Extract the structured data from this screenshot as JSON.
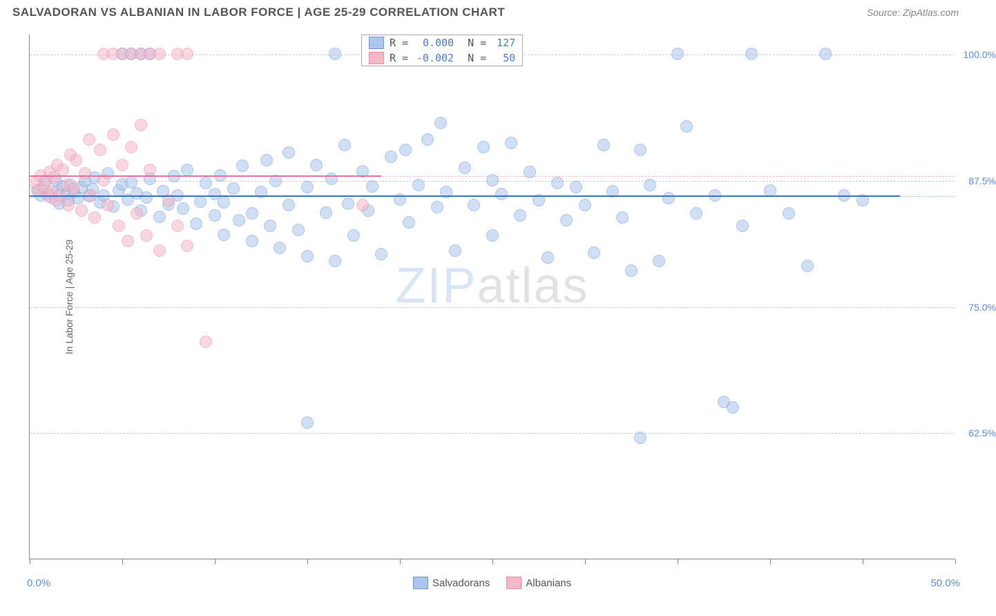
{
  "title": "SALVADORAN VS ALBANIAN IN LABOR FORCE | AGE 25-29 CORRELATION CHART",
  "source": "Source: ZipAtlas.com",
  "yaxis_title": "In Labor Force | Age 25-29",
  "watermark_zip": "ZIP",
  "watermark_atlas": "atlas",
  "chart": {
    "type": "scatter",
    "xlim": [
      0,
      50
    ],
    "ylim": [
      50,
      102
    ],
    "x_ticks": [
      0,
      5,
      10,
      15,
      20,
      25,
      30,
      35,
      40,
      45,
      50
    ],
    "x_labels_shown": {
      "0": "0.0%",
      "50": "50.0%"
    },
    "y_gridlines": [
      62.5,
      75,
      87.5,
      100
    ],
    "y_labels": {
      "62.5": "62.5%",
      "75": "75.0%",
      "87.5": "87.5%",
      "100": "100.0%"
    },
    "colors": {
      "series1_fill": "#aac6ea",
      "series1_stroke": "#6d9ad6",
      "series2_fill": "#f4b8c9",
      "series2_stroke": "#e88aa8",
      "trend1": "#3b73c9",
      "trend2": "#e573a0",
      "grid": "#cccccc",
      "axis": "#888888",
      "ylabel": "#5b8fd6"
    },
    "dot_radius": 9,
    "dot_opacity": 0.55,
    "legend_top": [
      {
        "swatch_fill": "#aac6ea",
        "swatch_stroke": "#6d9ad6",
        "r_label": "R =",
        "r": "0.000",
        "n_label": "N =",
        "n": "127"
      },
      {
        "swatch_fill": "#f4b8c9",
        "swatch_stroke": "#e88aa8",
        "r_label": "R =",
        "r": "-0.002",
        "n_label": "N =",
        "n": "50"
      }
    ],
    "legend_bottom": [
      {
        "swatch_fill": "#aac6ea",
        "swatch_stroke": "#6d9ad6",
        "label": "Salvadorans"
      },
      {
        "swatch_fill": "#f4b8c9",
        "swatch_stroke": "#e88aa8",
        "label": "Albanians"
      }
    ],
    "trendlines": [
      {
        "color": "#3b73c9",
        "y": 86.0,
        "x_from": 0,
        "x_to": 47,
        "width": 2,
        "dash_color": "#aac6ea"
      },
      {
        "color": "#e573a0",
        "y": 88.0,
        "x_from": 0,
        "x_to": 19,
        "width": 2,
        "dash_color": "#f4b8c9"
      }
    ],
    "series": [
      {
        "name": "Salvadorans",
        "fill": "#aac6ea",
        "stroke": "#6d9ad6",
        "points": [
          [
            0.4,
            86.5
          ],
          [
            0.6,
            86.0
          ],
          [
            0.8,
            87.2
          ],
          [
            1.0,
            86.1
          ],
          [
            1.2,
            85.8
          ],
          [
            1.4,
            87.5
          ],
          [
            1.5,
            86.4
          ],
          [
            1.6,
            85.2
          ],
          [
            1.8,
            86.9
          ],
          [
            2.0,
            86.2
          ],
          [
            2.1,
            85.5
          ],
          [
            2.2,
            87.0
          ],
          [
            2.4,
            86.3
          ],
          [
            2.6,
            85.7
          ],
          [
            2.8,
            86.8
          ],
          [
            3.0,
            87.4
          ],
          [
            3.2,
            85.9
          ],
          [
            3.4,
            86.6
          ],
          [
            3.5,
            87.8
          ],
          [
            3.8,
            85.3
          ],
          [
            4.0,
            86.0
          ],
          [
            4.2,
            88.2
          ],
          [
            4.5,
            84.9
          ],
          [
            4.8,
            86.5
          ],
          [
            5.0,
            87.1
          ],
          [
            5.0,
            100.0
          ],
          [
            5.5,
            100.0
          ],
          [
            6.0,
            100.0
          ],
          [
            6.5,
            100.0
          ],
          [
            5.3,
            85.6
          ],
          [
            5.5,
            87.3
          ],
          [
            5.8,
            86.2
          ],
          [
            6.0,
            84.5
          ],
          [
            6.3,
            85.8
          ],
          [
            6.5,
            87.6
          ],
          [
            7.0,
            83.9
          ],
          [
            7.2,
            86.4
          ],
          [
            7.5,
            85.1
          ],
          [
            7.8,
            87.9
          ],
          [
            8.0,
            86.0
          ],
          [
            8.3,
            84.7
          ],
          [
            8.5,
            88.5
          ],
          [
            9.0,
            83.2
          ],
          [
            9.2,
            85.4
          ],
          [
            9.5,
            87.2
          ],
          [
            10.0,
            84.0
          ],
          [
            10.0,
            86.1
          ],
          [
            10.3,
            88.0
          ],
          [
            10.5,
            85.3
          ],
          [
            10.5,
            82.1
          ],
          [
            11.0,
            86.7
          ],
          [
            11.3,
            83.5
          ],
          [
            11.5,
            88.9
          ],
          [
            12.0,
            84.2
          ],
          [
            12.0,
            81.5
          ],
          [
            12.5,
            86.3
          ],
          [
            12.8,
            89.5
          ],
          [
            13.0,
            83.0
          ],
          [
            13.3,
            87.4
          ],
          [
            13.5,
            80.8
          ],
          [
            14.0,
            90.2
          ],
          [
            14.0,
            85.0
          ],
          [
            14.5,
            82.6
          ],
          [
            15.0,
            86.8
          ],
          [
            15.0,
            80.0
          ],
          [
            15.5,
            89.0
          ],
          [
            16.0,
            84.3
          ],
          [
            16.3,
            87.6
          ],
          [
            16.5,
            79.5
          ],
          [
            17.0,
            91.0
          ],
          [
            17.2,
            85.2
          ],
          [
            17.5,
            82.0
          ],
          [
            18.0,
            88.4
          ],
          [
            18.3,
            84.5
          ],
          [
            18.5,
            86.9
          ],
          [
            19.0,
            80.2
          ],
          [
            19.5,
            89.8
          ],
          [
            20.0,
            85.6
          ],
          [
            20.3,
            90.5
          ],
          [
            20.5,
            83.3
          ],
          [
            21.0,
            87.0
          ],
          [
            21.5,
            91.5
          ],
          [
            22.0,
            84.8
          ],
          [
            22.2,
            93.2
          ],
          [
            22.5,
            86.3
          ],
          [
            23.0,
            80.5
          ],
          [
            23.5,
            88.7
          ],
          [
            24.0,
            85.0
          ],
          [
            24.5,
            90.8
          ],
          [
            25.0,
            87.5
          ],
          [
            25.0,
            82.0
          ],
          [
            25.5,
            86.1
          ],
          [
            26.0,
            91.2
          ],
          [
            26.5,
            84.0
          ],
          [
            27.0,
            88.3
          ],
          [
            27.5,
            85.5
          ],
          [
            28.0,
            79.8
          ],
          [
            28.5,
            87.2
          ],
          [
            29.0,
            83.5
          ],
          [
            29.5,
            86.8
          ],
          [
            30.0,
            85.0
          ],
          [
            30.5,
            80.3
          ],
          [
            31.0,
            91.0
          ],
          [
            31.5,
            86.4
          ],
          [
            32.0,
            83.8
          ],
          [
            33.0,
            90.5
          ],
          [
            33.5,
            87.0
          ],
          [
            34.0,
            79.5
          ],
          [
            34.5,
            85.7
          ],
          [
            35.0,
            100.0
          ],
          [
            35.5,
            92.8
          ],
          [
            36.0,
            84.2
          ],
          [
            37.0,
            86.0
          ],
          [
            37.5,
            65.5
          ],
          [
            38.0,
            65.0
          ],
          [
            33.0,
            62.0
          ],
          [
            32.5,
            78.5
          ],
          [
            38.5,
            83.0
          ],
          [
            39.0,
            100.0
          ],
          [
            40.0,
            86.5
          ],
          [
            41.0,
            84.2
          ],
          [
            42.0,
            79.0
          ],
          [
            43.0,
            100.0
          ],
          [
            44.0,
            86.0
          ],
          [
            45.0,
            85.5
          ],
          [
            15.0,
            63.5
          ],
          [
            16.5,
            100.0
          ]
        ]
      },
      {
        "name": "Albanians",
        "fill": "#f4b8c9",
        "stroke": "#e88aa8",
        "points": [
          [
            0.3,
            87.2
          ],
          [
            0.5,
            86.5
          ],
          [
            0.6,
            88.0
          ],
          [
            0.8,
            86.8
          ],
          [
            0.9,
            87.5
          ],
          [
            1.0,
            85.9
          ],
          [
            1.1,
            88.3
          ],
          [
            1.2,
            86.3
          ],
          [
            1.3,
            87.8
          ],
          [
            1.4,
            85.5
          ],
          [
            1.5,
            89.0
          ],
          [
            1.6,
            86.0
          ],
          [
            1.8,
            88.5
          ],
          [
            2.0,
            87.0
          ],
          [
            2.1,
            85.0
          ],
          [
            2.2,
            90.0
          ],
          [
            2.4,
            86.7
          ],
          [
            2.5,
            89.5
          ],
          [
            2.8,
            84.5
          ],
          [
            3.0,
            88.2
          ],
          [
            3.2,
            91.5
          ],
          [
            3.3,
            86.0
          ],
          [
            3.5,
            83.8
          ],
          [
            3.8,
            90.5
          ],
          [
            4.0,
            87.5
          ],
          [
            4.2,
            85.0
          ],
          [
            4.5,
            92.0
          ],
          [
            4.8,
            83.0
          ],
          [
            5.0,
            89.0
          ],
          [
            5.3,
            81.5
          ],
          [
            5.5,
            90.8
          ],
          [
            5.8,
            84.2
          ],
          [
            6.0,
            93.0
          ],
          [
            6.3,
            82.0
          ],
          [
            6.5,
            88.5
          ],
          [
            7.0,
            80.5
          ],
          [
            7.5,
            85.5
          ],
          [
            8.0,
            83.0
          ],
          [
            8.5,
            81.0
          ],
          [
            4.0,
            100.0
          ],
          [
            4.5,
            100.0
          ],
          [
            5.0,
            100.0
          ],
          [
            5.5,
            100.0
          ],
          [
            6.0,
            100.0
          ],
          [
            6.5,
            100.0
          ],
          [
            7.0,
            100.0
          ],
          [
            8.0,
            100.0
          ],
          [
            8.5,
            100.0
          ],
          [
            9.5,
            71.5
          ],
          [
            18.0,
            85.0
          ]
        ]
      }
    ]
  }
}
